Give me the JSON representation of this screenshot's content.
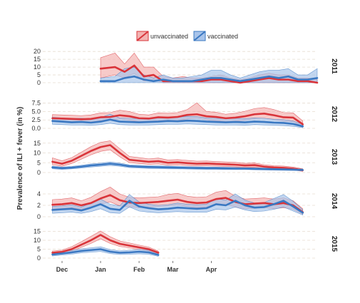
{
  "chart_data": {
    "type": "line",
    "ylabel": "Prevalence of ILI + fever (in %)",
    "legend": {
      "placement": "top-center",
      "entries": [
        {
          "name": "unvaccinated",
          "color": "#d9343a",
          "fill": "#f3b3b2"
        },
        {
          "name": "vaccinated",
          "color": "#3a78c2",
          "fill": "#a8c4ea"
        }
      ]
    },
    "x_ticks": [
      "Dec",
      "Jan",
      "Feb",
      "Mar",
      "Apr"
    ],
    "x_tick_weeks": [
      4,
      12,
      20,
      27,
      35
    ],
    "x_unit_note": "weeks since 1 Nov",
    "panels": [
      {
        "label": "2011",
        "yticks": [
          0,
          5,
          10,
          15,
          20
        ],
        "ylim": [
          0,
          21
        ],
        "x": [
          12,
          15,
          17,
          19,
          21,
          23,
          25,
          27,
          29,
          31,
          33,
          35,
          37,
          39,
          41,
          43,
          45,
          47,
          49,
          51,
          53,
          55,
          57
        ],
        "series": [
          {
            "name": "unvaccinated",
            "values": [
              9,
              10,
              7,
              11,
              4,
              5,
              1,
              1,
              1,
              1,
              1,
              2,
              2,
              1,
              0,
              1,
              2,
              3,
              2,
              2,
              1,
              1,
              0
            ],
            "lower": [
              3,
              5,
              3,
              6,
              1,
              2,
              0,
              0,
              0,
              0,
              0,
              0,
              0,
              0,
              0,
              0,
              0,
              0,
              0,
              0,
              0,
              0,
              0
            ],
            "upper": [
              16,
              19,
              12,
              19,
              10,
              10,
              4,
              3,
              4,
              3,
              3,
              4,
              5,
              3,
              2,
              3,
              5,
              6,
              5,
              5,
              3,
              3,
              2
            ]
          },
          {
            "name": "vaccinated",
            "values": [
              1,
              1,
              3,
              4,
              2,
              1,
              2,
              1,
              1,
              1,
              2,
              3,
              3,
              2,
              1,
              2,
              3,
              4,
              3,
              4,
              2,
              2,
              3
            ],
            "lower": [
              0,
              0,
              0,
              0,
              0,
              0,
              0,
              0,
              0,
              0,
              0,
              0,
              0,
              0,
              0,
              0,
              0,
              0,
              0,
              0,
              0,
              0,
              0
            ],
            "upper": [
              3,
              4,
              9,
              10,
              5,
              3,
              5,
              3,
              3,
              4,
              5,
              8,
              8,
              5,
              3,
              5,
              7,
              8,
              8,
              9,
              5,
              5,
              9
            ]
          }
        ]
      },
      {
        "label": "2012",
        "yticks": [
          0.0,
          2.5,
          5.0,
          7.5
        ],
        "ylim": [
          0,
          8.5
        ],
        "x": [
          2,
          4,
          6,
          8,
          10,
          12,
          14,
          16,
          18,
          20,
          22,
          24,
          26,
          28,
          30,
          32,
          34,
          36,
          38,
          40,
          42,
          44,
          46,
          48,
          50,
          52,
          54
        ],
        "series": [
          {
            "name": "unvaccinated",
            "values": [
              3.0,
              2.9,
              2.8,
              2.7,
              2.8,
              3.3,
              3.4,
              3.9,
              3.6,
              3.0,
              2.9,
              3.3,
              3.2,
              3.4,
              4.0,
              4.2,
              3.6,
              3.4,
              3.0,
              3.2,
              3.6,
              4.2,
              4.4,
              3.9,
              3.3,
              3.2,
              1.2
            ],
            "lower": [
              2.0,
              2.0,
              1.9,
              1.8,
              1.8,
              2.3,
              2.4,
              2.8,
              2.4,
              2.0,
              2.0,
              2.2,
              2.1,
              2.3,
              2.8,
              3.0,
              2.5,
              2.3,
              2.0,
              2.1,
              2.4,
              2.9,
              3.0,
              2.6,
              2.1,
              2.0,
              0.5
            ],
            "upper": [
              4.1,
              4.0,
              3.9,
              3.8,
              4.0,
              4.6,
              4.7,
              5.4,
              5.0,
              4.2,
              4.0,
              4.6,
              4.5,
              4.7,
              5.6,
              7.6,
              5.0,
              4.8,
              4.2,
              4.5,
              5.1,
              5.9,
              6.2,
              5.6,
              4.7,
              4.6,
              2.2
            ]
          },
          {
            "name": "vaccinated",
            "values": [
              2.2,
              2.0,
              1.8,
              1.9,
              1.7,
              2.0,
              2.6,
              2.0,
              1.9,
              1.8,
              1.9,
              2.0,
              2.2,
              2.1,
              2.3,
              2.2,
              2.0,
              1.9,
              1.8,
              1.9,
              1.8,
              2.0,
              1.9,
              1.7,
              1.6,
              1.3,
              0.6
            ],
            "lower": [
              1.2,
              1.1,
              1.0,
              1.0,
              0.9,
              1.1,
              1.5,
              1.1,
              1.0,
              1.0,
              1.0,
              1.1,
              1.2,
              1.2,
              1.3,
              1.2,
              1.1,
              1.0,
              1.0,
              1.0,
              0.9,
              1.1,
              1.0,
              0.9,
              0.8,
              0.6,
              0.2
            ],
            "upper": [
              3.3,
              3.1,
              2.9,
              3.0,
              2.8,
              3.2,
              4.2,
              3.1,
              3.0,
              2.9,
              3.0,
              3.2,
              3.4,
              3.3,
              3.6,
              3.5,
              3.1,
              3.0,
              2.9,
              3.0,
              2.9,
              3.1,
              3.0,
              2.7,
              2.6,
              2.2,
              1.2
            ]
          }
        ]
      },
      {
        "label": "2013",
        "yticks": [
          0,
          5,
          10,
          15
        ],
        "ylim": [
          0,
          16
        ],
        "x": [
          2,
          4,
          6,
          8,
          10,
          12,
          14,
          16,
          18,
          20,
          22,
          24,
          26,
          28,
          30,
          32,
          34,
          36,
          38,
          40,
          42,
          44,
          46,
          48,
          50,
          52,
          54
        ],
        "series": [
          {
            "name": "unvaccinated",
            "values": [
              5.5,
              4.5,
              6.0,
              8.5,
              11.0,
              13.0,
              14.0,
              10.0,
              6.5,
              6.0,
              5.5,
              5.8,
              5.0,
              5.2,
              4.8,
              4.5,
              4.6,
              4.4,
              4.2,
              4.0,
              3.6,
              3.8,
              3.0,
              2.6,
              2.4,
              2.0,
              1.2
            ],
            "lower": [
              4.0,
              3.2,
              4.6,
              6.8,
              9.0,
              10.8,
              11.6,
              8.0,
              5.0,
              4.6,
              4.2,
              4.4,
              3.8,
              3.9,
              3.6,
              3.4,
              3.4,
              3.3,
              3.1,
              2.9,
              2.6,
              2.7,
              2.1,
              1.8,
              1.6,
              1.3,
              0.6
            ],
            "upper": [
              7.5,
              6.0,
              7.6,
              10.4,
              13.2,
              15.4,
              16.2,
              12.2,
              8.2,
              7.6,
              7.0,
              7.4,
              6.4,
              6.6,
              6.2,
              5.8,
              5.9,
              5.6,
              5.4,
              5.2,
              4.7,
              4.9,
              4.0,
              3.5,
              3.3,
              2.8,
              1.9
            ]
          },
          {
            "name": "vaccinated",
            "values": [
              2.6,
              2.2,
              2.5,
              3.0,
              3.6,
              4.0,
              4.5,
              4.0,
              3.2,
              3.0,
              2.8,
              2.7,
              2.6,
              2.5,
              2.4,
              2.3,
              2.2,
              2.2,
              2.1,
              2.0,
              2.0,
              1.9,
              1.8,
              1.7,
              1.6,
              1.5,
              1.3
            ],
            "lower": [
              1.9,
              1.6,
              1.9,
              2.3,
              2.8,
              3.2,
              3.6,
              3.2,
              2.5,
              2.3,
              2.1,
              2.0,
              1.9,
              1.9,
              1.8,
              1.7,
              1.6,
              1.6,
              1.5,
              1.5,
              1.5,
              1.4,
              1.3,
              1.2,
              1.1,
              1.0,
              0.9
            ],
            "upper": [
              3.3,
              2.8,
              3.1,
              3.7,
              4.4,
              4.8,
              5.4,
              4.8,
              3.9,
              3.7,
              3.5,
              3.4,
              3.3,
              3.1,
              3.0,
              2.9,
              2.8,
              2.8,
              2.7,
              2.6,
              2.5,
              2.4,
              2.3,
              2.2,
              2.1,
              2.0,
              1.8
            ]
          }
        ]
      },
      {
        "label": "2014",
        "yticks": [
          0,
          2,
          4
        ],
        "ylim": [
          0,
          5.5
        ],
        "x": [
          2,
          4,
          6,
          8,
          10,
          12,
          14,
          16,
          18,
          20,
          22,
          24,
          26,
          28,
          30,
          32,
          34,
          36,
          38,
          40,
          42,
          44,
          46,
          48,
          50,
          52,
          54
        ],
        "series": [
          {
            "name": "unvaccinated",
            "values": [
              2.1,
              2.2,
              2.4,
              2.0,
              2.4,
              3.2,
              3.8,
              2.9,
              2.5,
              2.4,
              2.5,
              2.6,
              2.8,
              3.0,
              2.6,
              2.4,
              2.5,
              3.1,
              3.3,
              2.6,
              2.2,
              2.3,
              2.4,
              2.2,
              2.4,
              2.0,
              0.8
            ],
            "lower": [
              1.3,
              1.4,
              1.6,
              1.3,
              1.6,
              2.2,
              2.6,
              1.9,
              1.7,
              1.6,
              1.7,
              1.8,
              1.9,
              2.1,
              1.8,
              1.6,
              1.7,
              2.1,
              2.2,
              1.7,
              1.4,
              1.5,
              1.6,
              1.4,
              1.6,
              1.3,
              0.4
            ],
            "upper": [
              3.0,
              3.1,
              3.3,
              2.8,
              3.4,
              4.4,
              5.2,
              4.0,
              3.4,
              3.3,
              3.4,
              3.5,
              3.9,
              4.1,
              3.6,
              3.4,
              3.5,
              4.3,
              4.6,
              3.6,
              3.1,
              3.2,
              3.3,
              3.1,
              3.3,
              2.8,
              1.4
            ]
          },
          {
            "name": "vaccinated",
            "values": [
              1.2,
              1.3,
              1.4,
              1.1,
              1.6,
              2.2,
              1.4,
              1.2,
              2.8,
              1.8,
              1.5,
              1.3,
              1.4,
              1.6,
              1.5,
              1.4,
              1.5,
              2.2,
              2.0,
              2.8,
              2.0,
              1.6,
              1.7,
              2.2,
              2.8,
              1.8,
              0.7
            ],
            "lower": [
              0.6,
              0.7,
              0.8,
              0.6,
              0.9,
              1.4,
              0.7,
              0.6,
              1.7,
              1.0,
              0.8,
              0.7,
              0.8,
              0.9,
              0.8,
              0.8,
              0.8,
              1.3,
              1.2,
              1.7,
              1.2,
              0.9,
              1.0,
              1.3,
              1.7,
              1.0,
              0.3
            ],
            "upper": [
              1.8,
              1.9,
              2.1,
              1.7,
              2.4,
              3.1,
              2.2,
              1.9,
              3.9,
              2.6,
              2.2,
              2.0,
              2.1,
              2.4,
              2.2,
              2.1,
              2.2,
              3.2,
              2.9,
              4.0,
              2.9,
              2.4,
              2.5,
              3.2,
              3.9,
              2.7,
              1.2
            ]
          }
        ]
      },
      {
        "label": "2015",
        "yticks": [
          0,
          5,
          10,
          15
        ],
        "ylim": [
          0,
          16
        ],
        "x": [
          2,
          4,
          6,
          8,
          10,
          12,
          14,
          16,
          18,
          20,
          22,
          24
        ],
        "series": [
          {
            "name": "unvaccinated",
            "values": [
              3.0,
              3.5,
              5.0,
              7.5,
              10.0,
              13.0,
              10.0,
              8.0,
              7.0,
              6.0,
              5.0,
              3.0
            ],
            "lower": [
              2.2,
              2.6,
              3.8,
              6.0,
              8.2,
              10.8,
              8.2,
              6.5,
              5.7,
              4.8,
              3.9,
              2.2
            ],
            "upper": [
              4.0,
              4.5,
              6.4,
              9.2,
              12.2,
              15.2,
              12.0,
              9.6,
              8.5,
              7.3,
              6.2,
              3.9
            ]
          },
          {
            "name": "vaccinated",
            "values": [
              2.0,
              2.6,
              3.2,
              4.0,
              4.5,
              5.0,
              3.6,
              3.0,
              3.2,
              3.6,
              3.2,
              1.8
            ],
            "lower": [
              1.2,
              1.7,
              2.2,
              2.9,
              3.3,
              3.7,
              2.5,
              2.0,
              2.1,
              2.4,
              2.1,
              1.0
            ],
            "upper": [
              2.9,
              3.6,
              4.3,
              5.2,
              5.8,
              6.4,
              4.8,
              4.1,
              4.4,
              4.9,
              4.4,
              2.7
            ]
          }
        ]
      }
    ]
  }
}
